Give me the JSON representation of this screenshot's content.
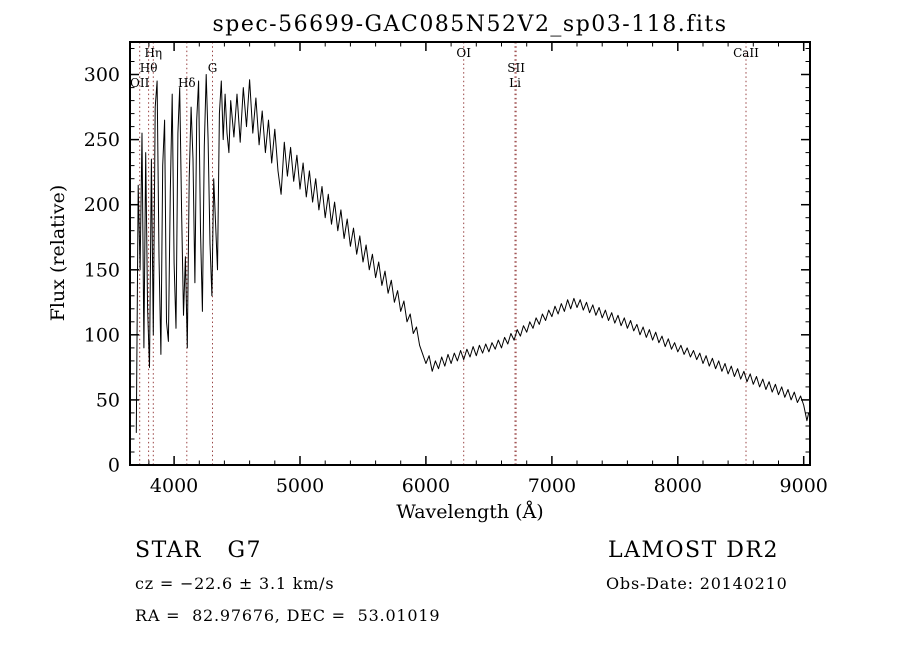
{
  "annotations": {
    "classification": "STAR   G7",
    "survey": "LAMOST DR2",
    "cz": "cz = −22.6 ± 3.1 km/s",
    "obs_date": "Obs-Date: 20140210",
    "coords": "RA =  82.97676, DEC =  53.01019"
  },
  "chart_data": {
    "type": "line",
    "title": "spec-56699-GAC085N52V2_sp03-118.fits",
    "xlabel": "Wavelength (Å)",
    "ylabel": "Flux (relative)",
    "xlim": [
      3650,
      9050
    ],
    "ylim": [
      0,
      325
    ],
    "xticks": [
      4000,
      5000,
      6000,
      7000,
      8000,
      9000
    ],
    "yticks": [
      0,
      50,
      100,
      150,
      200,
      250,
      300
    ],
    "x_minor_step": 200,
    "y_minor_step": 10,
    "grid": false,
    "line_color": "#000000",
    "marker_color": "#994444",
    "spectral_lines": [
      {
        "label": "Hη",
        "wavelength": 3835,
        "row": 0
      },
      {
        "label": "Hθ",
        "wavelength": 3798,
        "row": 1
      },
      {
        "label": "OII",
        "wavelength": 3727,
        "row": 2
      },
      {
        "label": "Hδ",
        "wavelength": 4101,
        "row": 2
      },
      {
        "label": "G",
        "wavelength": 4305,
        "row": 1
      },
      {
        "label": "OI",
        "wavelength": 6300,
        "row": 0
      },
      {
        "label": "SII",
        "wavelength": 6716,
        "row": 1
      },
      {
        "label": "Li",
        "wavelength": 6707,
        "row": 2
      },
      {
        "label": "CaII",
        "wavelength": 8542,
        "row": 0
      }
    ],
    "series": [
      {
        "name": "spectrum",
        "points": [
          [
            3700,
            25
          ],
          [
            3715,
            215
          ],
          [
            3730,
            150
          ],
          [
            3745,
            255
          ],
          [
            3760,
            90
          ],
          [
            3775,
            240
          ],
          [
            3790,
            120
          ],
          [
            3805,
            75
          ],
          [
            3820,
            235
          ],
          [
            3835,
            100
          ],
          [
            3850,
            275
          ],
          [
            3865,
            295
          ],
          [
            3880,
            160
          ],
          [
            3895,
            85
          ],
          [
            3910,
            230
          ],
          [
            3925,
            265
          ],
          [
            3940,
            110
          ],
          [
            3955,
            95
          ],
          [
            3970,
            210
          ],
          [
            3985,
            285
          ],
          [
            4000,
            155
          ],
          [
            4015,
            105
          ],
          [
            4030,
            255
          ],
          [
            4045,
            290
          ],
          [
            4060,
            195
          ],
          [
            4075,
            115
          ],
          [
            4090,
            160
          ],
          [
            4105,
            90
          ],
          [
            4120,
            220
          ],
          [
            4135,
            275
          ],
          [
            4150,
            235
          ],
          [
            4165,
            140
          ],
          [
            4180,
            265
          ],
          [
            4195,
            295
          ],
          [
            4210,
            180
          ],
          [
            4225,
            118
          ],
          [
            4240,
            245
          ],
          [
            4255,
            300
          ],
          [
            4270,
            250
          ],
          [
            4285,
            170
          ],
          [
            4300,
            130
          ],
          [
            4315,
            220
          ],
          [
            4330,
            185
          ],
          [
            4345,
            150
          ],
          [
            4360,
            270
          ],
          [
            4375,
            295
          ],
          [
            4390,
            250
          ],
          [
            4405,
            285
          ],
          [
            4420,
            255
          ],
          [
            4435,
            240
          ],
          [
            4450,
            280
          ],
          [
            4475,
            252
          ],
          [
            4500,
            285
          ],
          [
            4525,
            248
          ],
          [
            4550,
            290
          ],
          [
            4575,
            260
          ],
          [
            4600,
            296
          ],
          [
            4625,
            255
          ],
          [
            4650,
            282
          ],
          [
            4675,
            246
          ],
          [
            4700,
            272
          ],
          [
            4725,
            240
          ],
          [
            4750,
            265
          ],
          [
            4775,
            232
          ],
          [
            4800,
            258
          ],
          [
            4825,
            226
          ],
          [
            4850,
            208
          ],
          [
            4875,
            248
          ],
          [
            4900,
            222
          ],
          [
            4925,
            244
          ],
          [
            4950,
            218
          ],
          [
            4975,
            238
          ],
          [
            5000,
            212
          ],
          [
            5025,
            232
          ],
          [
            5050,
            206
          ],
          [
            5075,
            226
          ],
          [
            5100,
            202
          ],
          [
            5125,
            220
          ],
          [
            5150,
            196
          ],
          [
            5175,
            214
          ],
          [
            5200,
            190
          ],
          [
            5225,
            208
          ],
          [
            5250,
            185
          ],
          [
            5275,
            202
          ],
          [
            5300,
            180
          ],
          [
            5325,
            196
          ],
          [
            5350,
            174
          ],
          [
            5375,
            189
          ],
          [
            5400,
            168
          ],
          [
            5425,
            182
          ],
          [
            5450,
            162
          ],
          [
            5475,
            176
          ],
          [
            5500,
            156
          ],
          [
            5525,
            169
          ],
          [
            5550,
            150
          ],
          [
            5575,
            162
          ],
          [
            5600,
            144
          ],
          [
            5625,
            156
          ],
          [
            5650,
            138
          ],
          [
            5675,
            149
          ],
          [
            5700,
            132
          ],
          [
            5725,
            142
          ],
          [
            5750,
            125
          ],
          [
            5775,
            134
          ],
          [
            5800,
            118
          ],
          [
            5825,
            126
          ],
          [
            5850,
            110
          ],
          [
            5875,
            116
          ],
          [
            5900,
            101
          ],
          [
            5925,
            106
          ],
          [
            5950,
            92
          ],
          [
            5975,
            85
          ],
          [
            6000,
            78
          ],
          [
            6025,
            84
          ],
          [
            6050,
            72
          ],
          [
            6075,
            80
          ],
          [
            6100,
            74
          ],
          [
            6125,
            83
          ],
          [
            6150,
            76
          ],
          [
            6175,
            85
          ],
          [
            6200,
            78
          ],
          [
            6225,
            86
          ],
          [
            6250,
            80
          ],
          [
            6275,
            88
          ],
          [
            6300,
            81
          ],
          [
            6325,
            89
          ],
          [
            6350,
            83
          ],
          [
            6375,
            91
          ],
          [
            6400,
            84
          ],
          [
            6425,
            92
          ],
          [
            6450,
            86
          ],
          [
            6475,
            93
          ],
          [
            6500,
            87
          ],
          [
            6525,
            94
          ],
          [
            6550,
            89
          ],
          [
            6575,
            96
          ],
          [
            6600,
            90
          ],
          [
            6625,
            98
          ],
          [
            6650,
            93
          ],
          [
            6675,
            101
          ],
          [
            6700,
            96
          ],
          [
            6725,
            104
          ],
          [
            6750,
            99
          ],
          [
            6775,
            107
          ],
          [
            6800,
            102
          ],
          [
            6825,
            110
          ],
          [
            6850,
            105
          ],
          [
            6875,
            113
          ],
          [
            6900,
            108
          ],
          [
            6925,
            116
          ],
          [
            6950,
            111
          ],
          [
            6975,
            119
          ],
          [
            7000,
            114
          ],
          [
            7025,
            122
          ],
          [
            7050,
            116
          ],
          [
            7075,
            124
          ],
          [
            7100,
            118
          ],
          [
            7125,
            127
          ],
          [
            7150,
            120
          ],
          [
            7175,
            128
          ],
          [
            7200,
            121
          ],
          [
            7225,
            127
          ],
          [
            7250,
            119
          ],
          [
            7275,
            125
          ],
          [
            7300,
            117
          ],
          [
            7325,
            123
          ],
          [
            7350,
            115
          ],
          [
            7375,
            121
          ],
          [
            7400,
            113
          ],
          [
            7425,
            119
          ],
          [
            7450,
            111
          ],
          [
            7475,
            117
          ],
          [
            7500,
            109
          ],
          [
            7525,
            115
          ],
          [
            7550,
            107
          ],
          [
            7575,
            113
          ],
          [
            7600,
            105
          ],
          [
            7625,
            111
          ],
          [
            7650,
            103
          ],
          [
            7675,
            108
          ],
          [
            7700,
            100
          ],
          [
            7725,
            106
          ],
          [
            7750,
            98
          ],
          [
            7775,
            104
          ],
          [
            7800,
            96
          ],
          [
            7825,
            102
          ],
          [
            7850,
            94
          ],
          [
            7875,
            99
          ],
          [
            7900,
            91
          ],
          [
            7925,
            97
          ],
          [
            7950,
            89
          ],
          [
            7975,
            94
          ],
          [
            8000,
            87
          ],
          [
            8025,
            92
          ],
          [
            8050,
            85
          ],
          [
            8075,
            90
          ],
          [
            8100,
            83
          ],
          [
            8125,
            88
          ],
          [
            8150,
            81
          ],
          [
            8175,
            86
          ],
          [
            8200,
            78
          ],
          [
            8225,
            84
          ],
          [
            8250,
            76
          ],
          [
            8275,
            82
          ],
          [
            8300,
            74
          ],
          [
            8325,
            80
          ],
          [
            8350,
            72
          ],
          [
            8375,
            78
          ],
          [
            8400,
            70
          ],
          [
            8425,
            76
          ],
          [
            8450,
            68
          ],
          [
            8475,
            74
          ],
          [
            8500,
            66
          ],
          [
            8525,
            72
          ],
          [
            8550,
            64
          ],
          [
            8575,
            70
          ],
          [
            8600,
            62
          ],
          [
            8625,
            68
          ],
          [
            8650,
            60
          ],
          [
            8675,
            66
          ],
          [
            8700,
            58
          ],
          [
            8725,
            64
          ],
          [
            8750,
            56
          ],
          [
            8775,
            62
          ],
          [
            8800,
            54
          ],
          [
            8825,
            60
          ],
          [
            8850,
            52
          ],
          [
            8875,
            58
          ],
          [
            8900,
            50
          ],
          [
            8925,
            56
          ],
          [
            8950,
            48
          ],
          [
            8975,
            53
          ],
          [
            9000,
            46
          ],
          [
            9025,
            34
          ],
          [
            9040,
            40
          ]
        ]
      }
    ]
  }
}
